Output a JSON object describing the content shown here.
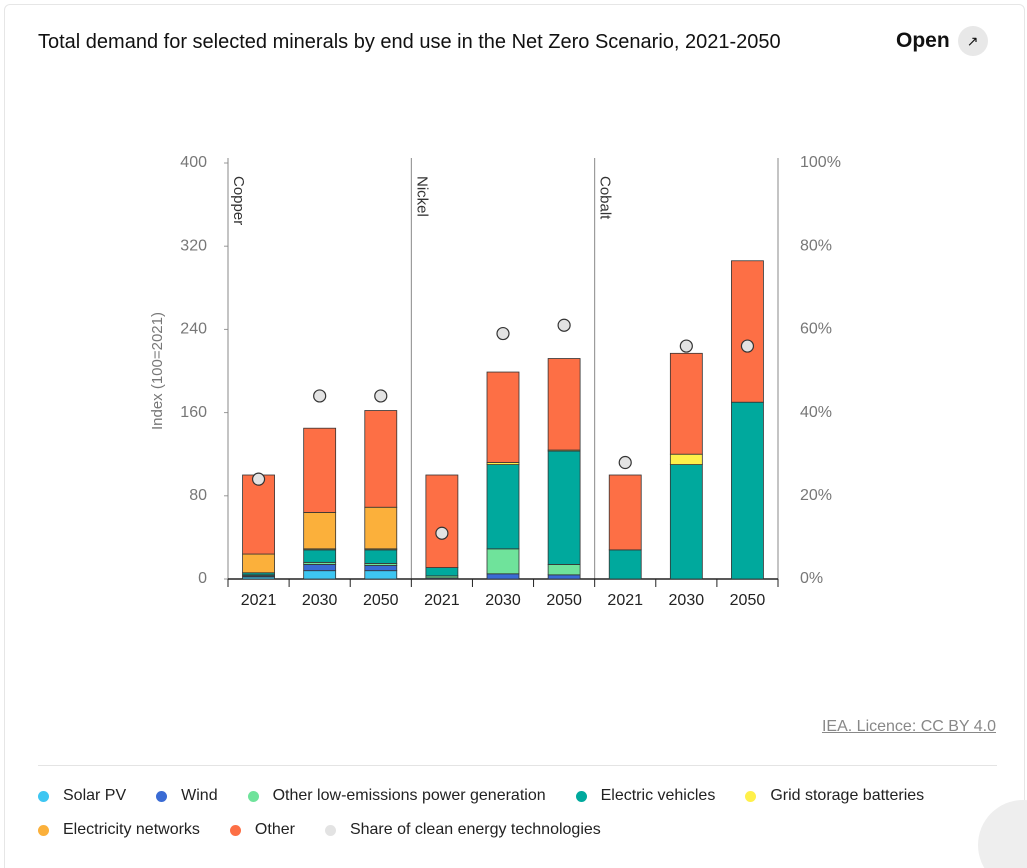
{
  "chart_data": {
    "type": "bar",
    "stacked": true,
    "title": "Total demand for selected minerals by end use in the Net Zero Scenario, 2021-2050",
    "open_button": "Open",
    "source": "IEA. Licence: CC BY 4.0",
    "ylabel": "Index (100=2021)",
    "groups": [
      {
        "name": "Copper",
        "size": 3
      },
      {
        "name": "Nickel",
        "size": 3
      },
      {
        "name": "Cobalt",
        "size": 3
      }
    ],
    "categories": [
      "2021",
      "2030",
      "2050",
      "2021",
      "2030",
      "2050",
      "2021",
      "2030",
      "2050"
    ],
    "ylim": [
      0,
      400
    ],
    "yticks": [
      0,
      80,
      160,
      240,
      320,
      400
    ],
    "y2lim": [
      0,
      100
    ],
    "y2ticks": [
      {
        "value": 0,
        "label": "0%"
      },
      {
        "value": 20,
        "label": "20%"
      },
      {
        "value": 40,
        "label": "40%"
      },
      {
        "value": 60,
        "label": "60%"
      },
      {
        "value": 80,
        "label": "80%"
      },
      {
        "value": 100,
        "label": "100%"
      }
    ],
    "series": [
      {
        "name": "Solar PV",
        "color": "#3ec6f2",
        "values": [
          2,
          8,
          8,
          0,
          0,
          0,
          0,
          0,
          0
        ]
      },
      {
        "name": "Wind",
        "color": "#3a6bd4",
        "values": [
          1,
          6,
          5,
          1,
          5,
          4,
          0,
          0,
          0
        ]
      },
      {
        "name": "Other low-emissions power generation",
        "color": "#6fe39b",
        "values": [
          1,
          2,
          2,
          2,
          24,
          10,
          0,
          0,
          0
        ]
      },
      {
        "name": "Electric vehicles",
        "color": "#00a99d",
        "values": [
          2,
          12,
          13,
          8,
          81,
          109,
          28,
          110,
          170
        ]
      },
      {
        "name": "Grid storage batteries",
        "color": "#fff04a",
        "values": [
          0,
          1,
          1,
          0,
          2,
          1,
          0,
          10,
          0
        ]
      },
      {
        "name": "Electricity networks",
        "color": "#fbb03b",
        "values": [
          18,
          35,
          40,
          0,
          0,
          0,
          0,
          0,
          0
        ]
      },
      {
        "name": "Other",
        "color": "#fd6f45",
        "values": [
          76,
          81,
          93,
          89,
          87,
          88,
          72,
          97,
          136
        ]
      },
      {
        "name": "Share of clean energy technologies",
        "color": "#e3e3e3",
        "type": "scatter",
        "axis": "y2",
        "values": [
          24,
          44,
          44,
          11,
          59,
          61,
          28,
          56,
          56
        ]
      }
    ]
  }
}
